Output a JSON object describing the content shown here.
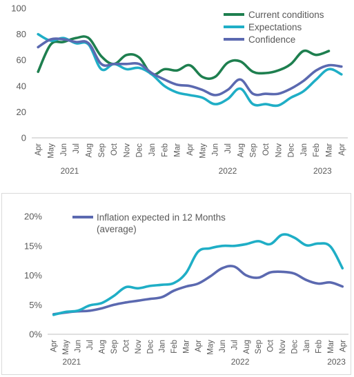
{
  "charts": [
    {
      "type": "line",
      "categories": [
        "Apr",
        "May",
        "Jun",
        "Jul",
        "Aug",
        "Sep",
        "Oct",
        "Nov",
        "Dec",
        "Jan",
        "Feb",
        "Mar",
        "Apr",
        "May",
        "Jun",
        "Jul",
        "Aug",
        "Sep",
        "Oct",
        "Nov",
        "Dec",
        "Jan",
        "Feb",
        "Mar",
        "Apr"
      ],
      "year_labels": [
        {
          "label": "2021",
          "index": 2.5
        },
        {
          "label": "2022",
          "index": 15
        },
        {
          "label": "2023",
          "index": 22.5
        }
      ],
      "ylim": [
        0,
        100
      ],
      "yticks": [
        0,
        20,
        40,
        60,
        80,
        100
      ],
      "ytick_labels": [
        "0",
        "20",
        "40",
        "60",
        "80",
        "100"
      ],
      "grid": false,
      "legend_position": "top-right",
      "series": [
        {
          "name": "Current conditions",
          "color": "#1e7f4f",
          "values": [
            51,
            72,
            74,
            77,
            77,
            63,
            57,
            64,
            62,
            49,
            53,
            52,
            56,
            47,
            47,
            58,
            59,
            51,
            50,
            52,
            57,
            67,
            64,
            67,
            null
          ]
        },
        {
          "name": "Expectations",
          "color": "#1faec6",
          "values": [
            80,
            75,
            77,
            73,
            72,
            53,
            57,
            53,
            54,
            49,
            40,
            35,
            33,
            31,
            26,
            30,
            38,
            26,
            26,
            25,
            31,
            36,
            45,
            53,
            49
          ]
        },
        {
          "name": "Confidence",
          "color": "#5b69b0",
          "values": [
            70,
            76,
            76,
            74,
            73,
            57,
            57,
            57,
            57,
            50,
            45,
            41,
            40,
            37,
            33,
            37,
            45,
            34,
            34,
            34,
            38,
            44,
            52,
            56,
            55
          ]
        }
      ]
    },
    {
      "type": "line",
      "categories": [
        "Apr",
        "May",
        "Jun",
        "Jul",
        "Aug",
        "Sep",
        "Oct",
        "Nov",
        "Dec",
        "Jan",
        "Feb",
        "Mar",
        "Apr",
        "May",
        "Jun",
        "Jul",
        "Aug",
        "Sep",
        "Oct",
        "Nov",
        "Dec",
        "Jan",
        "Feb",
        "Mar",
        "Apr"
      ],
      "year_labels": [
        {
          "label": "2021",
          "index": 1.5
        },
        {
          "label": "2022",
          "index": 15.5
        },
        {
          "label": "2023",
          "index": 23.5
        }
      ],
      "ylim": [
        0,
        20
      ],
      "yticks": [
        0,
        5,
        10,
        15,
        20
      ],
      "ytick_labels": [
        "0%",
        "5%",
        "10%",
        "15%",
        "20%"
      ],
      "grid": false,
      "legend_position": "top-left",
      "series": [
        {
          "name": "Inflation expected in 12 Months (average)",
          "legend_lines": [
            "Inflation expected in 12 Months",
            "(average)"
          ],
          "color": "#5b69b0",
          "values": [
            3.4,
            3.7,
            3.9,
            4.0,
            4.4,
            5.0,
            5.4,
            5.7,
            6.0,
            6.3,
            7.4,
            8.1,
            8.6,
            9.8,
            11.2,
            11.5,
            10.0,
            9.6,
            10.5,
            10.6,
            10.3,
            9.2,
            8.6,
            8.8,
            8.1
          ]
        },
        {
          "name": "",
          "color": "#1faec6",
          "values": [
            3.3,
            3.8,
            4.0,
            4.9,
            5.3,
            6.5,
            8.0,
            7.8,
            8.2,
            8.4,
            8.7,
            10.4,
            14.0,
            14.6,
            15.0,
            15.0,
            15.3,
            15.8,
            15.3,
            16.9,
            16.4,
            15.1,
            15.4,
            14.9,
            11.2
          ]
        }
      ]
    }
  ]
}
